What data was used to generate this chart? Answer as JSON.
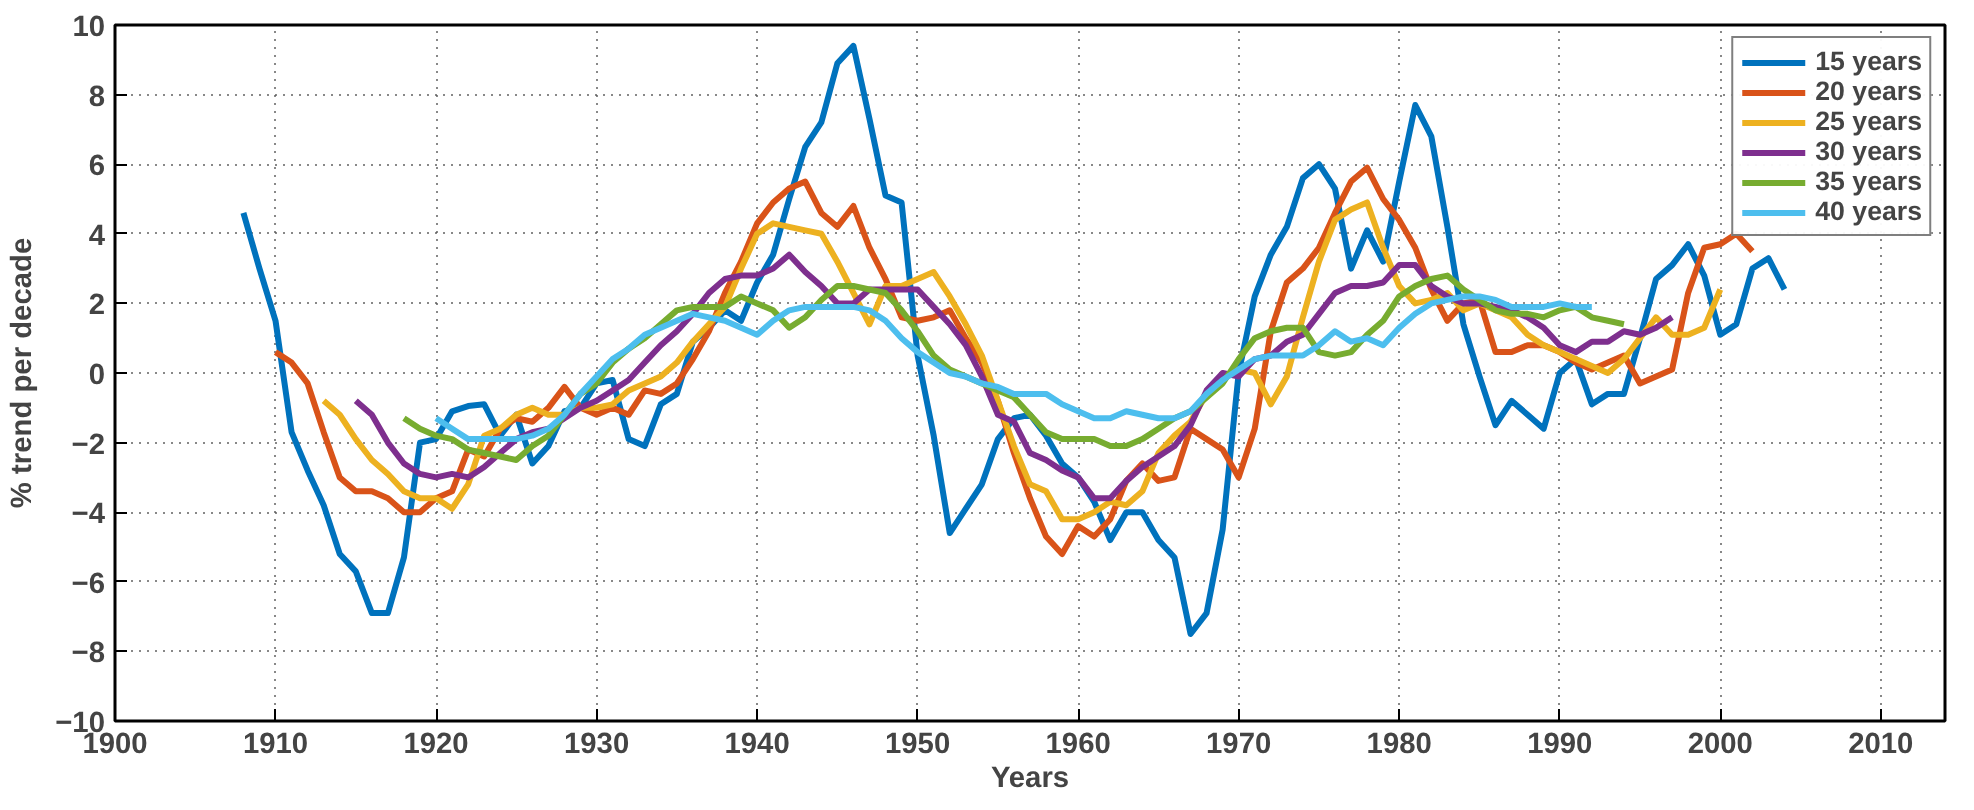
{
  "chart_data": {
    "type": "line",
    "xlabel": "Years",
    "ylabel": "% trend per decade",
    "x": [
      1908,
      1909,
      1910,
      1911,
      1912,
      1913,
      1914,
      1915,
      1916,
      1917,
      1918,
      1919,
      1920,
      1921,
      1922,
      1923,
      1924,
      1925,
      1926,
      1927,
      1928,
      1929,
      1930,
      1931,
      1932,
      1933,
      1934,
      1935,
      1936,
      1937,
      1938,
      1939,
      1940,
      1941,
      1942,
      1943,
      1944,
      1945,
      1946,
      1947,
      1948,
      1949,
      1950,
      1951,
      1952,
      1953,
      1954,
      1955,
      1956,
      1957,
      1958,
      1959,
      1960,
      1961,
      1962,
      1963,
      1964,
      1965,
      1966,
      1967,
      1968,
      1969,
      1970,
      1971,
      1972,
      1973,
      1974,
      1975,
      1976,
      1977,
      1978,
      1979,
      1980,
      1981,
      1982,
      1983,
      1984,
      1985,
      1986,
      1987,
      1988,
      1989,
      1990,
      1991,
      1992,
      1993,
      1994,
      1995,
      1996,
      1997,
      1998,
      1999,
      2000,
      2001,
      2002,
      2003,
      2004
    ],
    "series": [
      {
        "name": "15 years",
        "color": "#0072bd",
        "values": [
          4.6,
          3.0,
          1.5,
          -1.7,
          -2.8,
          -3.8,
          -5.2,
          -5.7,
          -6.9,
          -6.9,
          -5.3,
          -2.0,
          -1.9,
          -1.1,
          -0.95,
          -0.9,
          -1.8,
          -1.2,
          -2.6,
          -2.1,
          -1.1,
          -1.0,
          -0.3,
          -0.2,
          -1.9,
          -2.1,
          -0.9,
          -0.6,
          0.9,
          1.3,
          1.8,
          1.5,
          2.6,
          3.4,
          5.0,
          6.5,
          7.2,
          8.9,
          9.4,
          7.3,
          5.1,
          4.9,
          0.5,
          -1.8,
          -4.6,
          -3.9,
          -3.2,
          -1.9,
          -1.3,
          -1.2,
          -1.8,
          -2.6,
          -3.0,
          -3.7,
          -4.8,
          -4.0,
          -4.0,
          -4.8,
          -5.3,
          -7.5,
          -6.9,
          -4.5,
          0.0,
          2.2,
          3.4,
          4.2,
          5.6,
          6.0,
          5.3,
          3.0,
          4.1,
          3.2,
          5.5,
          7.7,
          6.8,
          4.2,
          1.4,
          -0.1,
          -1.5,
          -0.8,
          -1.2,
          -1.6,
          0.0,
          0.4,
          -0.9,
          -0.6,
          -0.6,
          1.0,
          2.7,
          3.1,
          3.7,
          2.8,
          1.1,
          1.4,
          3.0,
          3.3,
          2.4
        ]
      },
      {
        "name": "20 years",
        "color": "#d95319",
        "values": [
          null,
          null,
          0.6,
          0.3,
          -0.3,
          -1.7,
          -3.0,
          -3.4,
          -3.4,
          -3.6,
          -4.0,
          -4.0,
          -3.6,
          -3.4,
          -2.2,
          -2.4,
          -1.6,
          -1.3,
          -1.4,
          -1.0,
          -0.4,
          -1.0,
          -1.2,
          -1.0,
          -1.2,
          -0.5,
          -0.6,
          -0.3,
          0.4,
          1.2,
          2.3,
          3.2,
          4.3,
          4.9,
          5.3,
          5.5,
          4.6,
          4.2,
          4.8,
          3.6,
          2.7,
          1.6,
          1.5,
          1.6,
          1.8,
          1.0,
          0.3,
          -0.8,
          -2.3,
          -3.6,
          -4.7,
          -5.2,
          -4.4,
          -4.7,
          -4.2,
          -3.1,
          -2.6,
          -3.1,
          -3.0,
          -1.6,
          -1.9,
          -2.2,
          -3.0,
          -1.6,
          1.2,
          2.6,
          3.0,
          3.6,
          4.6,
          5.5,
          5.9,
          5.0,
          4.4,
          3.6,
          2.4,
          1.5,
          2.0,
          2.1,
          0.6,
          0.6,
          0.8,
          0.8,
          0.6,
          0.3,
          0.1,
          0.3,
          0.5,
          -0.3,
          -0.1,
          0.1,
          2.3,
          3.6,
          3.7,
          4.0,
          3.5,
          null,
          null
        ]
      },
      {
        "name": "25 years",
        "color": "#edb120",
        "values": [
          null,
          null,
          null,
          null,
          null,
          -0.8,
          -1.2,
          -1.9,
          -2.5,
          -2.9,
          -3.4,
          -3.6,
          -3.6,
          -3.9,
          -3.2,
          -1.8,
          -1.6,
          -1.2,
          -1.0,
          -1.2,
          -1.2,
          -1.0,
          -1.0,
          -0.9,
          -0.5,
          -0.3,
          -0.1,
          0.3,
          0.9,
          1.4,
          1.9,
          3.0,
          4.0,
          4.3,
          4.2,
          4.1,
          4.0,
          3.2,
          2.3,
          1.4,
          2.5,
          2.5,
          2.7,
          2.9,
          2.2,
          1.4,
          0.5,
          -0.8,
          -2.1,
          -3.2,
          -3.4,
          -4.2,
          -4.2,
          -4.0,
          -3.7,
          -3.8,
          -3.4,
          -2.3,
          -1.8,
          -1.4,
          -0.6,
          -0.1,
          0.1,
          0.0,
          -0.9,
          -0.1,
          1.6,
          3.2,
          4.4,
          4.7,
          4.9,
          3.6,
          2.5,
          2.0,
          2.1,
          2.3,
          1.8,
          2.0,
          1.8,
          1.6,
          1.1,
          0.8,
          0.6,
          0.4,
          0.2,
          0.0,
          0.4,
          1.0,
          1.6,
          1.1,
          1.1,
          1.3,
          2.4,
          null,
          null,
          null,
          null
        ]
      },
      {
        "name": "30 years",
        "color": "#7e2f8e",
        "values": [
          null,
          null,
          null,
          null,
          null,
          null,
          null,
          -0.8,
          -1.2,
          -2.0,
          -2.6,
          -2.9,
          -3.0,
          -2.9,
          -3.0,
          -2.7,
          -2.3,
          -1.9,
          -1.7,
          -1.6,
          -1.3,
          -1.0,
          -0.8,
          -0.5,
          -0.2,
          0.3,
          0.8,
          1.2,
          1.7,
          2.3,
          2.7,
          2.8,
          2.8,
          3.0,
          3.4,
          2.9,
          2.5,
          2.0,
          2.0,
          2.4,
          2.4,
          2.4,
          2.4,
          1.9,
          1.4,
          0.8,
          -0.1,
          -1.2,
          -1.4,
          -2.3,
          -2.5,
          -2.8,
          -3.0,
          -3.6,
          -3.6,
          -3.1,
          -2.7,
          -2.4,
          -2.1,
          -1.5,
          -0.5,
          0.0,
          -0.1,
          0.4,
          0.5,
          0.9,
          1.1,
          1.7,
          2.3,
          2.5,
          2.5,
          2.6,
          3.1,
          3.1,
          2.5,
          2.2,
          2.0,
          2.0,
          1.9,
          1.8,
          1.6,
          1.3,
          0.8,
          0.6,
          0.9,
          0.9,
          1.2,
          1.1,
          1.3,
          1.6,
          null,
          null,
          null,
          null,
          null,
          null,
          null
        ]
      },
      {
        "name": "35 years",
        "color": "#77ac30",
        "values": [
          null,
          null,
          null,
          null,
          null,
          null,
          null,
          null,
          null,
          null,
          -1.3,
          -1.6,
          -1.8,
          -1.9,
          -2.2,
          -2.3,
          -2.4,
          -2.5,
          -2.1,
          -1.8,
          -1.2,
          -0.6,
          -0.3,
          0.3,
          0.7,
          1.0,
          1.4,
          1.8,
          1.9,
          1.9,
          1.9,
          2.2,
          2.0,
          1.8,
          1.3,
          1.6,
          2.1,
          2.5,
          2.5,
          2.4,
          2.3,
          1.8,
          1.2,
          0.5,
          0.1,
          -0.1,
          -0.3,
          -0.5,
          -0.7,
          -1.2,
          -1.7,
          -1.9,
          -1.9,
          -1.9,
          -2.1,
          -2.1,
          -1.9,
          -1.6,
          -1.3,
          -1.1,
          -0.7,
          -0.3,
          0.4,
          1.0,
          1.2,
          1.3,
          1.3,
          0.6,
          0.5,
          0.6,
          1.1,
          1.5,
          2.2,
          2.5,
          2.7,
          2.8,
          2.4,
          2.1,
          1.8,
          1.7,
          1.7,
          1.6,
          1.8,
          1.9,
          1.6,
          1.5,
          1.4,
          null,
          null,
          null,
          null,
          null,
          null,
          null,
          null,
          null,
          null
        ]
      },
      {
        "name": "40 years",
        "color": "#4dbeee",
        "values": [
          null,
          null,
          null,
          null,
          null,
          null,
          null,
          null,
          null,
          null,
          null,
          null,
          -1.3,
          -1.6,
          -1.9,
          -1.9,
          -1.9,
          -1.9,
          -1.8,
          -1.6,
          -1.2,
          -0.6,
          -0.1,
          0.4,
          0.7,
          1.1,
          1.3,
          1.5,
          1.7,
          1.6,
          1.5,
          1.3,
          1.1,
          1.5,
          1.8,
          1.9,
          1.9,
          1.9,
          1.9,
          1.8,
          1.5,
          1.0,
          0.6,
          0.3,
          0.0,
          -0.1,
          -0.3,
          -0.4,
          -0.6,
          -0.6,
          -0.6,
          -0.9,
          -1.1,
          -1.3,
          -1.3,
          -1.1,
          -1.2,
          -1.3,
          -1.3,
          -1.1,
          -0.6,
          -0.2,
          0.1,
          0.4,
          0.5,
          0.5,
          0.5,
          0.8,
          1.2,
          0.9,
          1.0,
          0.8,
          1.3,
          1.7,
          2.0,
          2.1,
          2.2,
          2.2,
          2.1,
          1.9,
          1.9,
          1.9,
          2.0,
          1.9,
          1.9,
          null,
          null,
          null,
          null,
          null,
          null,
          null,
          null,
          null,
          null,
          null,
          null
        ]
      }
    ],
    "xlim": [
      1900,
      2014
    ],
    "ylim": [
      -10,
      10
    ],
    "xticks": [
      1900,
      1910,
      1920,
      1930,
      1940,
      1950,
      1960,
      1970,
      1980,
      1990,
      2000,
      2010
    ],
    "yticks": [
      -10,
      -8,
      -6,
      -4,
      -2,
      0,
      2,
      4,
      6,
      8,
      10
    ],
    "grid": true,
    "legend": "top right",
    "line_style": "solid",
    "marker": "none"
  }
}
